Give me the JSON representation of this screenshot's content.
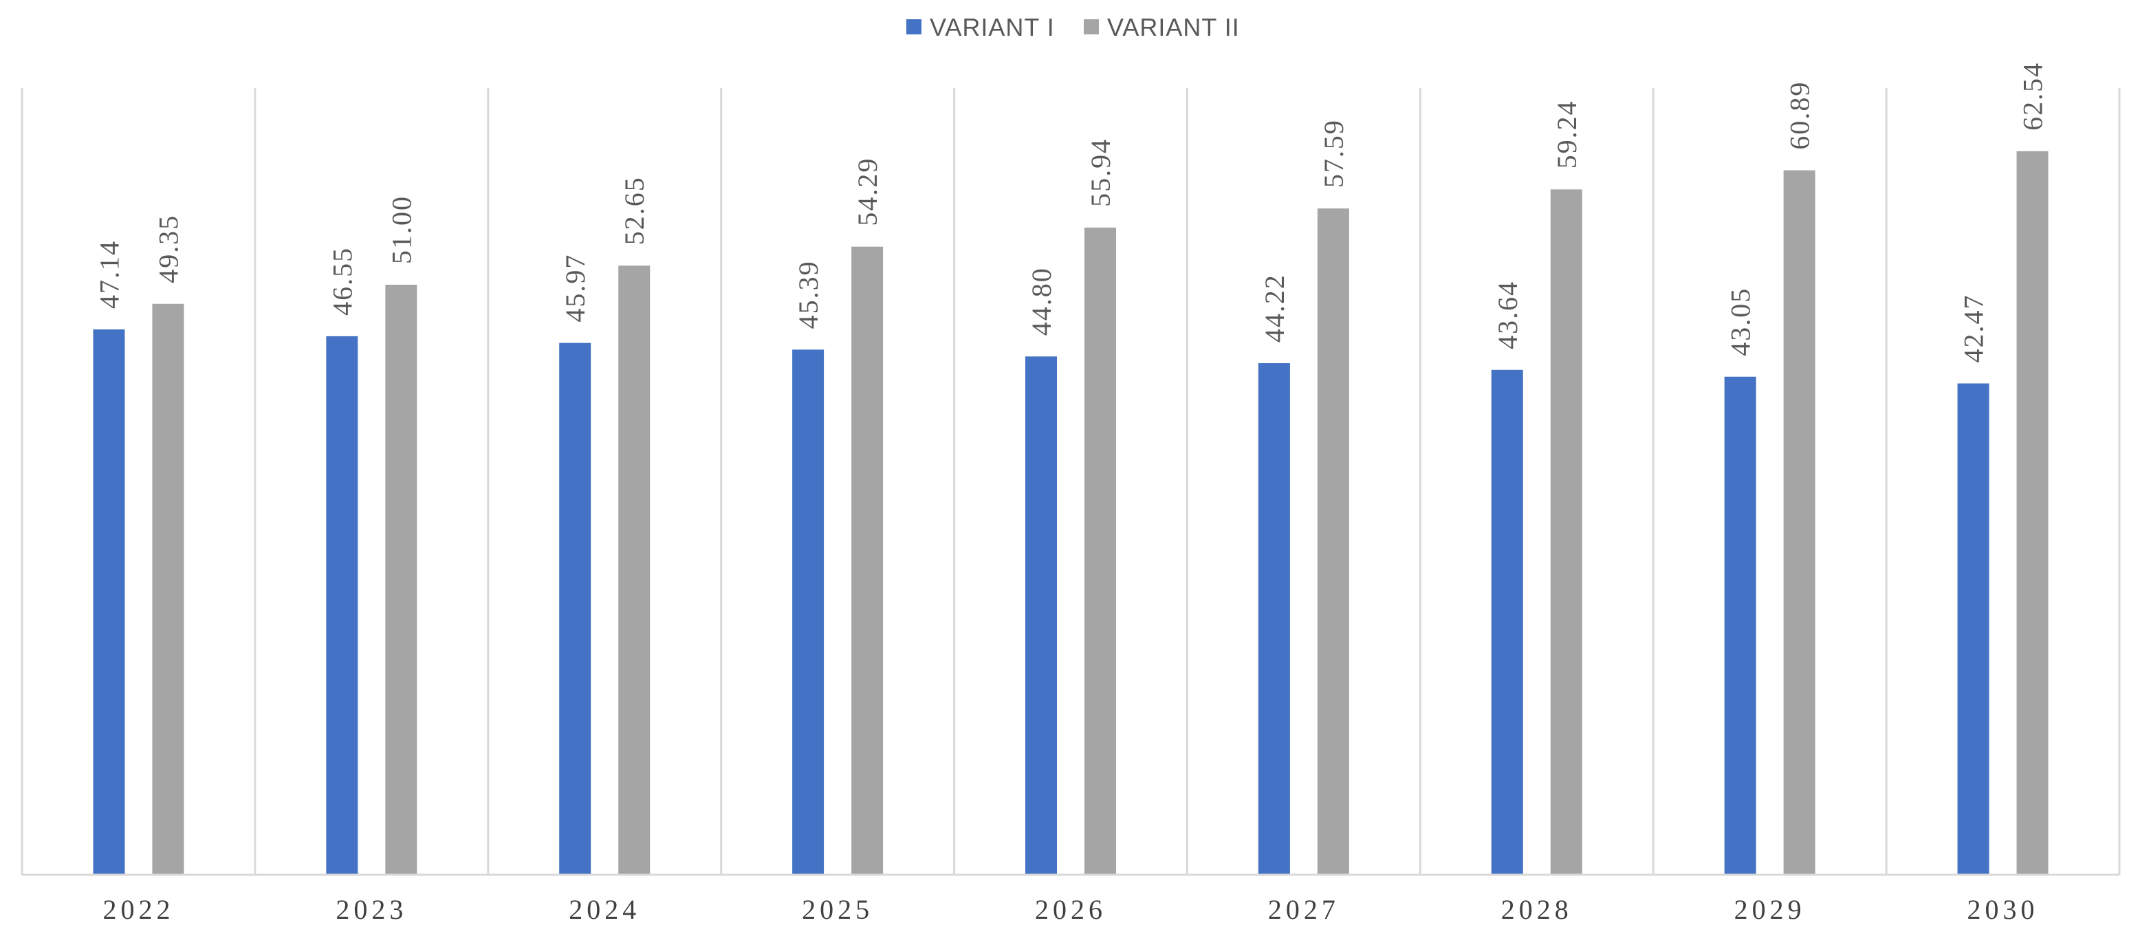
{
  "chart_data": {
    "type": "bar",
    "categories": [
      "2022",
      "2023",
      "2024",
      "2025",
      "2026",
      "2027",
      "2028",
      "2029",
      "2030"
    ],
    "series": [
      {
        "name": "VARIANT I",
        "color": "#4472C4",
        "values": [
          47.14,
          46.55,
          45.97,
          45.39,
          44.8,
          44.22,
          43.64,
          43.05,
          42.47
        ]
      },
      {
        "name": "VARIANT II",
        "color": "#A5A5A5",
        "values": [
          49.35,
          51.0,
          52.65,
          54.29,
          55.94,
          57.59,
          59.24,
          60.89,
          62.54
        ]
      }
    ],
    "data_labels": [
      [
        "47.14",
        "46.55",
        "45.97",
        "45.39",
        "44.80",
        "44.22",
        "43.64",
        "43.05",
        "42.47"
      ],
      [
        "49.35",
        "51.00",
        "52.65",
        "54.29",
        "55.94",
        "57.59",
        "59.24",
        "60.89",
        "62.54"
      ]
    ],
    "ylim": [
      0,
      68
    ],
    "legend_position": "top-center",
    "grid": "vertical category separators"
  }
}
